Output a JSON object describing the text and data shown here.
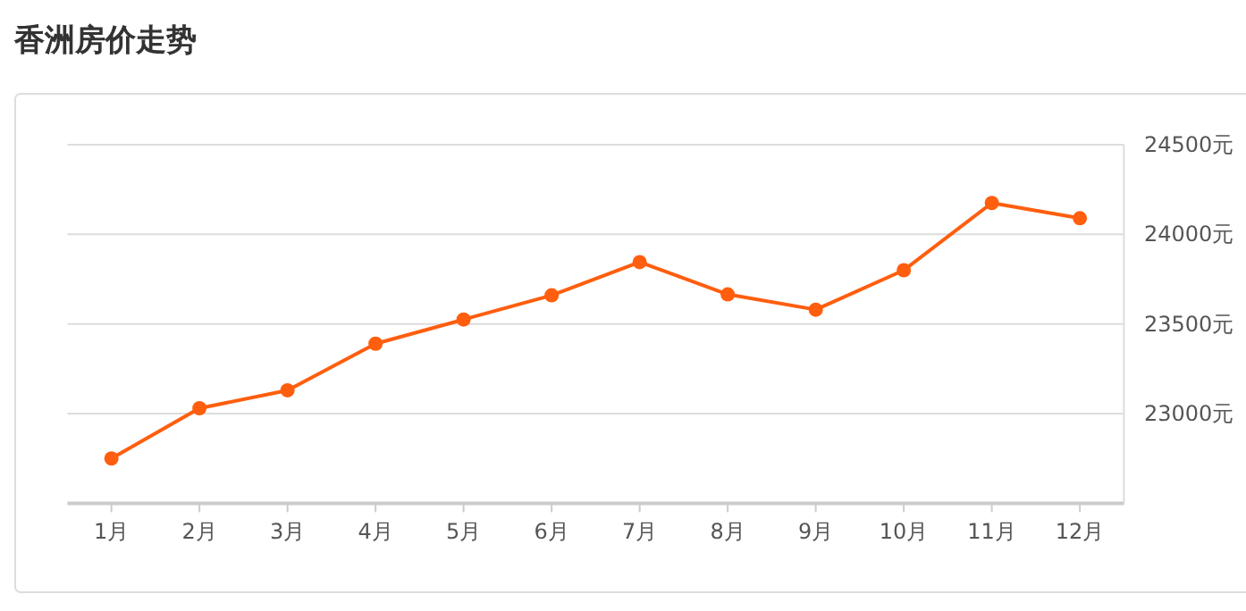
{
  "chart_data": {
    "type": "line",
    "title": "香洲房价走势",
    "categories": [
      "1月",
      "2月",
      "3月",
      "4月",
      "5月",
      "6月",
      "7月",
      "8月",
      "9月",
      "10月",
      "11月",
      "12月"
    ],
    "series": [
      {
        "color": "#ff5e0e",
        "values": [
          22750,
          23030,
          23130,
          23390,
          23525,
          23660,
          23845,
          23665,
          23580,
          23800,
          24175,
          24090
        ]
      }
    ],
    "ylim": [
      22500,
      24500
    ],
    "yticks": [
      {
        "value": 23000,
        "label": "23000元"
      },
      {
        "value": 23500,
        "label": "23500元"
      },
      {
        "value": 24000,
        "label": "24000元"
      },
      {
        "value": 24500,
        "label": "24500元"
      }
    ],
    "grid": "y",
    "marker": "circle",
    "line_style": "solid"
  }
}
